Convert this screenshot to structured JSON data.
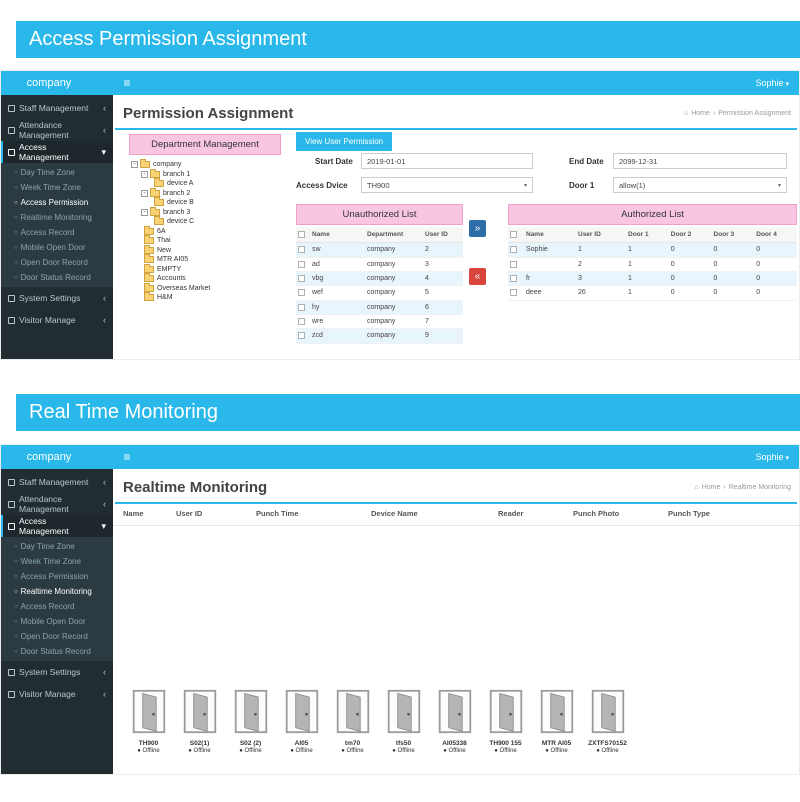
{
  "colors": {
    "accent": "#29b8e9",
    "sidebar_bg": "#222d32",
    "pink_header": "#f9c6e1",
    "transfer_right": "#2d6da8",
    "transfer_left": "#d9453c"
  },
  "icons": {
    "hamburger": "≡",
    "caret_down": "▾",
    "chevron_collapsed": "‹",
    "chevron_expanded": "▾",
    "home": "⌂",
    "breadcrumb_sep": "›",
    "circle": "○",
    "dot": "●",
    "transfer_right": "»",
    "transfer_left": "«"
  },
  "banners": {
    "permission": "Access Permission Assignment",
    "monitoring": "Real Time Monitoring"
  },
  "topbar": {
    "company": "company",
    "user": "Sophie"
  },
  "sidebar": {
    "top_items": [
      "Staff Management",
      "Attendance Management"
    ],
    "expanded_item": "Access Management",
    "submenu": [
      "Day Time Zone",
      "Week Time Zone",
      "Access Permission",
      "Realtime Monitoring",
      "Access Record",
      "Mobile Open Door",
      "Open Door Record",
      "Door Status Record"
    ],
    "bottom_items": [
      "System Settings",
      "Visitor Manage"
    ]
  },
  "screen1": {
    "title": "Permission Assignment",
    "breadcrumb": {
      "home": "Home",
      "current": "Permission Assignment"
    },
    "active_submenu": "Access Permission",
    "dept_panel": {
      "title": "Department Management"
    },
    "tree": [
      {
        "label": "company",
        "level": 0,
        "box": true
      },
      {
        "label": "branch 1",
        "level": 1,
        "box": true
      },
      {
        "label": "device A",
        "level": 2,
        "box": false
      },
      {
        "label": "branch 2",
        "level": 1,
        "box": true
      },
      {
        "label": "device B",
        "level": 2,
        "box": false
      },
      {
        "label": "branch 3",
        "level": 1,
        "box": true
      },
      {
        "label": "device C",
        "level": 2,
        "box": false
      },
      {
        "label": "6A",
        "level": 1,
        "box": false
      },
      {
        "label": "Thai",
        "level": 1,
        "box": false
      },
      {
        "label": "New",
        "level": 1,
        "box": false
      },
      {
        "label": "MTR AI05",
        "level": 1,
        "box": false
      },
      {
        "label": "EMPTY",
        "level": 1,
        "box": false
      },
      {
        "label": "Accounts",
        "level": 1,
        "box": false
      },
      {
        "label": "Overseas Market",
        "level": 1,
        "box": false
      },
      {
        "label": "H&M",
        "level": 1,
        "box": false
      }
    ],
    "view_button": "View User Permission",
    "form": {
      "start_date_label": "Start Date",
      "start_date_value": "2019-01-01",
      "end_date_label": "End Date",
      "end_date_value": "2099-12-31",
      "device_label": "Access Dvice",
      "device_value": "TH900",
      "door_label": "Door 1",
      "door_value": "allow(1)"
    },
    "unauthorized": {
      "title": "Unauthorized List",
      "headers": [
        "Name",
        "Department",
        "User ID"
      ],
      "rows": [
        [
          "sw",
          "company",
          "2"
        ],
        [
          "ad",
          "company",
          "3"
        ],
        [
          "vbg",
          "company",
          "4"
        ],
        [
          "wef",
          "company",
          "5"
        ],
        [
          "hy",
          "company",
          "6"
        ],
        [
          "wre",
          "company",
          "7"
        ],
        [
          "zcd",
          "company",
          "9"
        ]
      ]
    },
    "authorized": {
      "title": "Authorized List",
      "headers": [
        "Name",
        "User ID",
        "Door 1",
        "Door 2",
        "Door 3",
        "Door 4"
      ],
      "rows": [
        [
          "Sophie",
          "1",
          "1",
          "0",
          "0",
          "0"
        ],
        [
          "",
          "2",
          "1",
          "0",
          "0",
          "0"
        ],
        [
          "fr",
          "3",
          "1",
          "0",
          "0",
          "0"
        ],
        [
          "deee",
          "26",
          "1",
          "0",
          "0",
          "0"
        ]
      ]
    }
  },
  "screen2": {
    "title": "Realtime Monitoring",
    "breadcrumb": {
      "home": "Home",
      "current": "Realtime Monitoring"
    },
    "active_submenu": "Realtime Monitoring",
    "table_headers": [
      "Name",
      "User ID",
      "Punch Time",
      "Device Name",
      "Reader",
      "Punch Photo",
      "Punch Type"
    ],
    "devices": [
      {
        "name": "TH900",
        "status": "Offline"
      },
      {
        "name": "S02(1)",
        "status": "Offline"
      },
      {
        "name": "S02 (2)",
        "status": "Offline"
      },
      {
        "name": "AI05",
        "status": "Offline"
      },
      {
        "name": "tm70",
        "status": "Offline"
      },
      {
        "name": "tfs50",
        "status": "Offline"
      },
      {
        "name": "AI05338",
        "status": "Offline"
      },
      {
        "name": "TH900 155",
        "status": "Offline"
      },
      {
        "name": "MTR AI05",
        "status": "Offline"
      },
      {
        "name": "ZXTFS70152",
        "status": "Offline"
      }
    ]
  }
}
